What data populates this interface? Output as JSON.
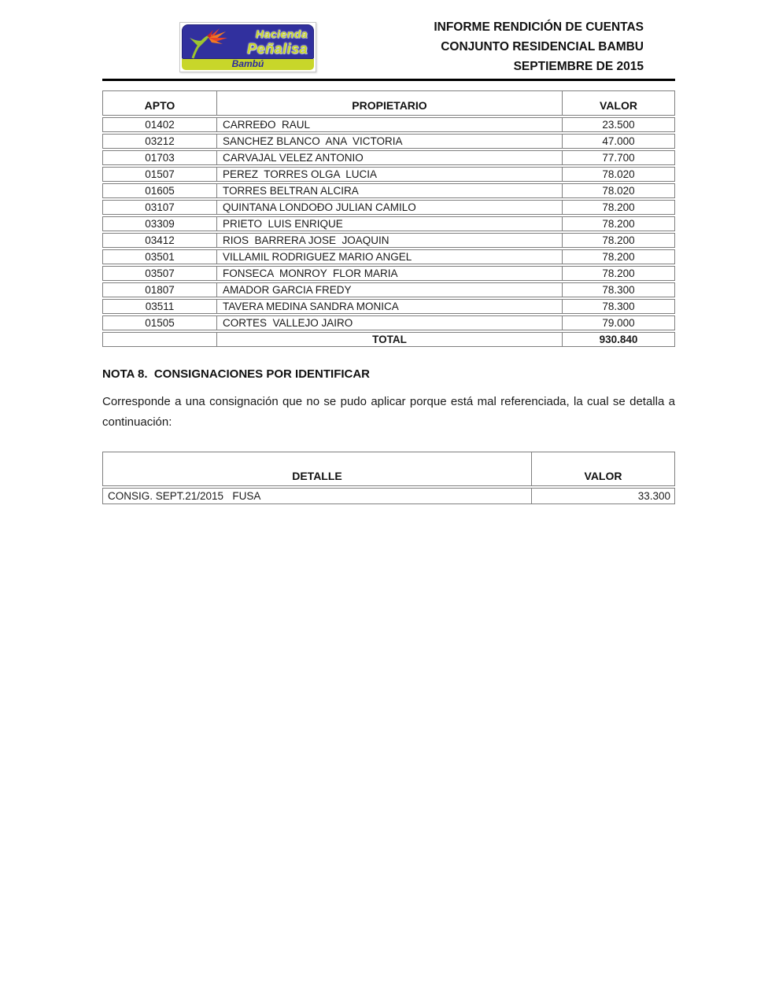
{
  "header": {
    "logo": {
      "line1": "Hacienda",
      "line2": "Peñalisa",
      "strip": "Bambú",
      "colors": {
        "blue": "#31309e",
        "green": "#c8d62a",
        "text_blue": "#2b2b9e"
      }
    },
    "title_lines": {
      "0": "INFORME RENDICIÓN DE CUENTAS",
      "1": "CONJUNTO RESIDENCIAL BAMBU",
      "2": "SEPTIEMBRE DE 2015"
    }
  },
  "owners_table": {
    "columns": {
      "0": "APTO",
      "1": "PROPIETARIO",
      "2": "VALOR"
    },
    "rows": [
      [
        "01402",
        "CARREÐO  RAUL",
        "23.500"
      ],
      [
        "03212",
        "SANCHEZ BLANCO  ANA  VICTORIA",
        "47.000"
      ],
      [
        "01703",
        "CARVAJAL VELEZ ANTONIO",
        "77.700"
      ],
      [
        "01507",
        "PEREZ  TORRES OLGA  LUCIA",
        "78.020"
      ],
      [
        "01605",
        "TORRES BELTRAN ALCIRA",
        "78.020"
      ],
      [
        "03107",
        "QUINTANA LONDOÐO JULIAN CAMILO",
        "78.200"
      ],
      [
        "03309",
        "PRIETO  LUIS ENRIQUE",
        "78.200"
      ],
      [
        "03412",
        "RIOS  BARRERA JOSE  JOAQUIN",
        "78.200"
      ],
      [
        "03501",
        "VILLAMIL RODRIGUEZ MARIO ANGEL",
        "78.200"
      ],
      [
        "03507",
        "FONSECA  MONROY  FLOR MARIA",
        "78.200"
      ],
      [
        "01807",
        "AMADOR GARCIA FREDY",
        "78.300"
      ],
      [
        "03511",
        "TAVERA MEDINA SANDRA MONICA",
        "78.300"
      ],
      [
        "01505",
        "CORTES  VALLEJO JAIRO",
        "79.000"
      ]
    ],
    "total_label": "TOTAL",
    "total_value": "930.840"
  },
  "note": {
    "heading": "NOTA 8.  CONSIGNACIONES POR IDENTIFICAR",
    "body": "Corresponde a una consignación que no se pudo aplicar porque está mal referenciada, la cual se detalla a continuación:"
  },
  "detail_table": {
    "columns": {
      "0": "DETALLE",
      "1": "VALOR"
    },
    "rows": [
      [
        "CONSIG. SEPT.21/2015   FUSA",
        "33.300"
      ]
    ]
  }
}
